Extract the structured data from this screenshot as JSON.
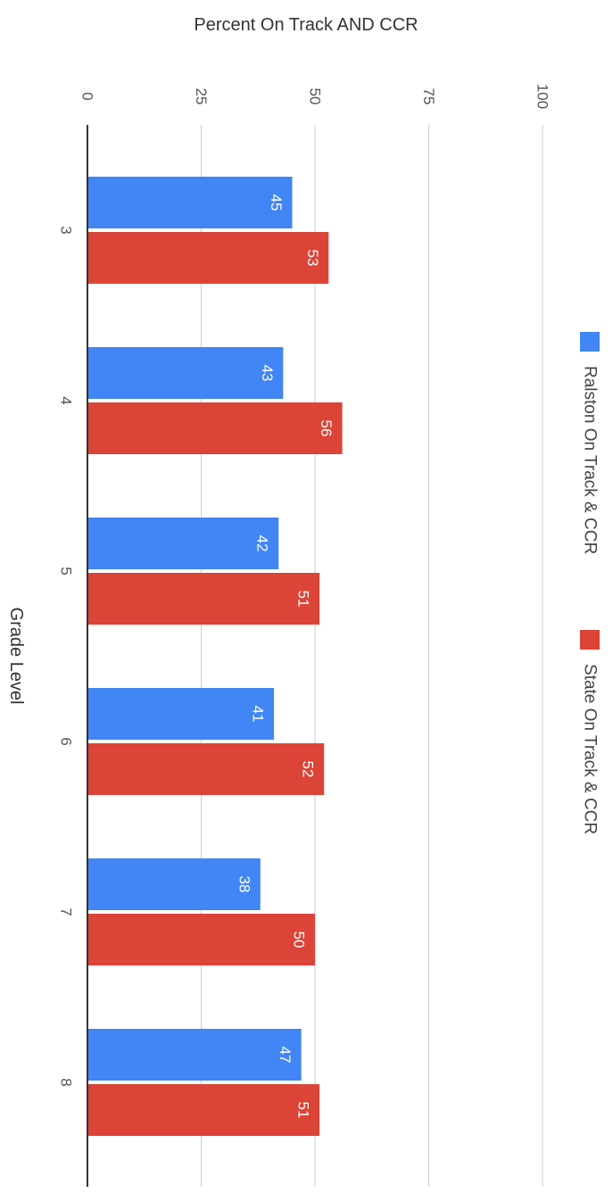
{
  "chart_data": {
    "type": "bar",
    "orientation": "horizontal",
    "title": "Percent On Track AND CCR",
    "xlabel": "Grade Level",
    "ylabel": "",
    "categories": [
      "3",
      "4",
      "5",
      "6",
      "7",
      "8"
    ],
    "series": [
      {
        "name": "Ralston On Track & CCR",
        "color": "#4285f4",
        "values": [
          45,
          43,
          42,
          41,
          38,
          47
        ]
      },
      {
        "name": "State On Track & CCR",
        "color": "#db4437",
        "values": [
          53,
          56,
          51,
          52,
          50,
          51
        ]
      }
    ],
    "ticks": [
      "0",
      "25",
      "50",
      "75",
      "100"
    ],
    "ylim": [
      0,
      100
    ],
    "grid": true,
    "legend_position": "right",
    "data_labels": true
  }
}
